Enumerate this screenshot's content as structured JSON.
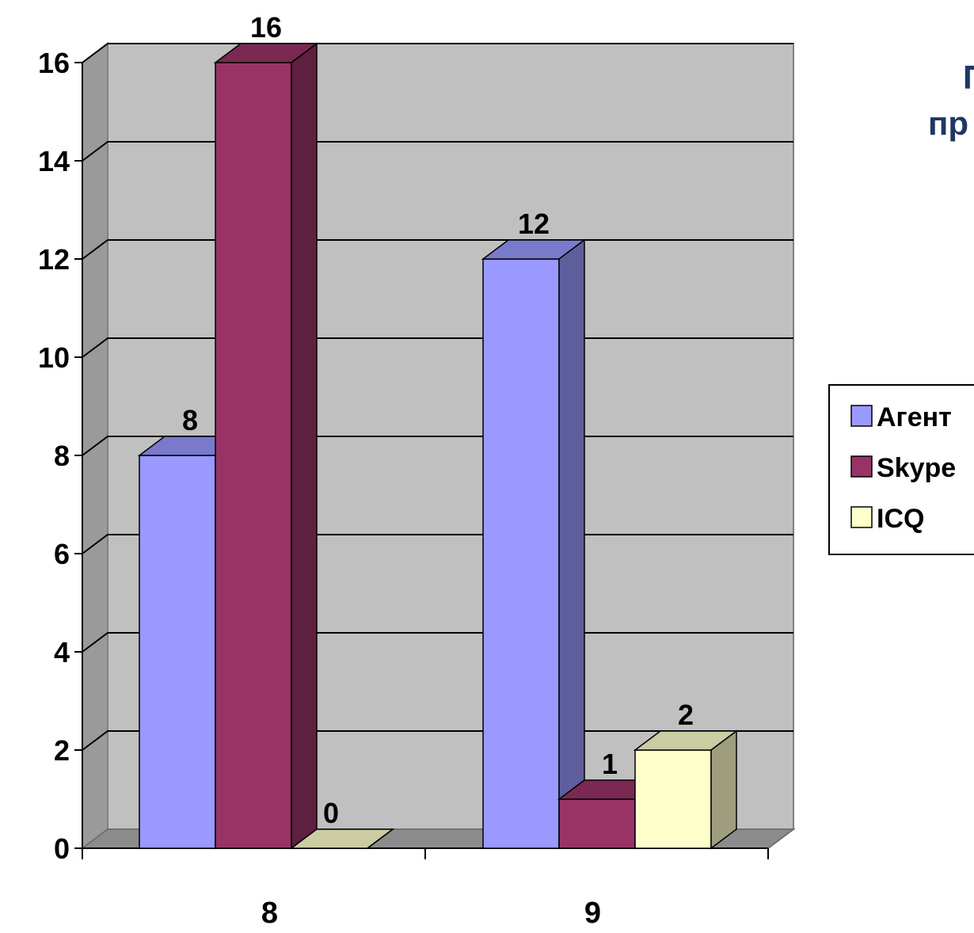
{
  "chart_data": {
    "type": "bar",
    "categories": [
      "8",
      "9"
    ],
    "series": [
      {
        "name": "Агент",
        "values": [
          8,
          12
        ],
        "color": "#9999ff"
      },
      {
        "name": "Skype",
        "values": [
          16,
          1
        ],
        "color": "#993366"
      },
      {
        "name": "ICQ",
        "values": [
          0,
          2
        ],
        "color": "#ffffcc"
      }
    ],
    "ylim": [
      0,
      16
    ],
    "yticks": [
      "0",
      "2",
      "4",
      "6",
      "8",
      "10",
      "12",
      "14",
      "16"
    ],
    "grid": true,
    "legend": "right",
    "style": "3d-clustered-column",
    "title_fragments": [
      "П",
      "пр"
    ]
  }
}
